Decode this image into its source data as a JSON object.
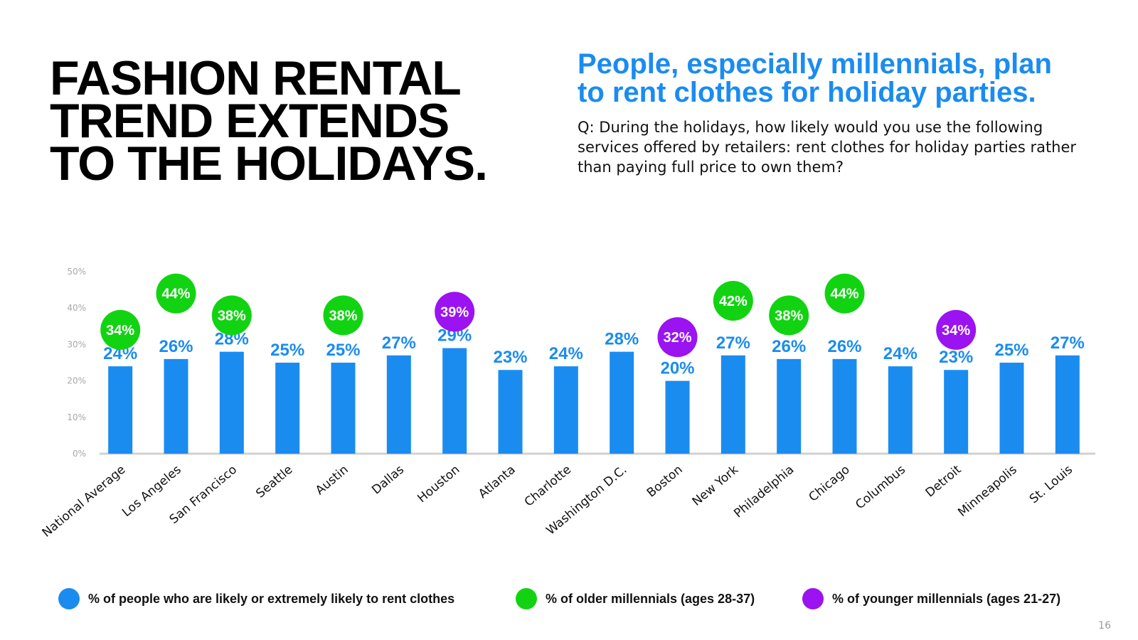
{
  "header": {
    "title_lines": [
      "FASHION RENTAL",
      "TREND EXTENDS",
      "TO THE HOLIDAYS."
    ],
    "subtitle_lines": [
      "People, especially millennials, plan",
      "to rent clothes for holiday parties."
    ],
    "question": "Q: During the holidays, how likely would you use the following services offered by retailers: rent clothes for holiday parties rather than paying full price to own them?"
  },
  "colors": {
    "bar": "#1a8cf0",
    "older": "#12d312",
    "younger": "#9a13f0",
    "axis": "#d0d0d0",
    "tick": "#a8a8a8"
  },
  "chart_data": {
    "type": "bar",
    "title": "People, especially millennials, plan to rent clothes for holiday parties.",
    "xlabel": "",
    "ylabel": "",
    "ylim": [
      0,
      50
    ],
    "y_ticks": [
      "0%",
      "10%",
      "20%",
      "30%",
      "40%",
      "50%"
    ],
    "y_tick_values": [
      0,
      10,
      20,
      30,
      40,
      50
    ],
    "grid": false,
    "categories": [
      "National Average",
      "Los Angeles",
      "San Francisco",
      "Seattle",
      "Austin",
      "Dallas",
      "Houston",
      "Atlanta",
      "Charlotte",
      "Washington D.C.",
      "Boston",
      "New York",
      "Philadelphia",
      "Chicago",
      "Columbus",
      "Detroit",
      "Minneapolis",
      "St. Louis"
    ],
    "series": [
      {
        "name": "% of people who are likely or extremely likely to rent clothes",
        "values": [
          24,
          26,
          28,
          25,
          25,
          27,
          29,
          23,
          24,
          28,
          20,
          27,
          26,
          26,
          24,
          23,
          25,
          27
        ],
        "labels": [
          "24%",
          "26%",
          "28%",
          "25%",
          "25%",
          "27%",
          "29%",
          "23%",
          "24%",
          "28%",
          "20%",
          "27%",
          "26%",
          "26%",
          "24%",
          "23%",
          "25%",
          "27%"
        ]
      }
    ],
    "callouts": [
      {
        "category": "National Average",
        "group": "older",
        "value": 34,
        "label": "34%"
      },
      {
        "category": "Los Angeles",
        "group": "older",
        "value": 44,
        "label": "44%"
      },
      {
        "category": "San Francisco",
        "group": "older",
        "value": 38,
        "label": "38%"
      },
      {
        "category": "Austin",
        "group": "older",
        "value": 38,
        "label": "38%"
      },
      {
        "category": "Houston",
        "group": "younger",
        "value": 39,
        "label": "39%"
      },
      {
        "category": "Boston",
        "group": "younger",
        "value": 32,
        "label": "32%"
      },
      {
        "category": "New York",
        "group": "older",
        "value": 42,
        "label": "42%"
      },
      {
        "category": "Philadelphia",
        "group": "older",
        "value": 38,
        "label": "38%"
      },
      {
        "category": "Chicago",
        "group": "older",
        "value": 44,
        "label": "44%"
      },
      {
        "category": "Detroit",
        "group": "younger",
        "value": 34,
        "label": "34%"
      }
    ],
    "legend": [
      {
        "key": "bar",
        "label": "% of people who are likely or extremely likely to rent clothes"
      },
      {
        "key": "older",
        "label": "% of older millennials (ages 28-37)"
      },
      {
        "key": "younger",
        "label": "% of younger millennials (ages 21-27)"
      }
    ],
    "legend_position": "bottom"
  },
  "footer": {
    "page_number": "16"
  }
}
